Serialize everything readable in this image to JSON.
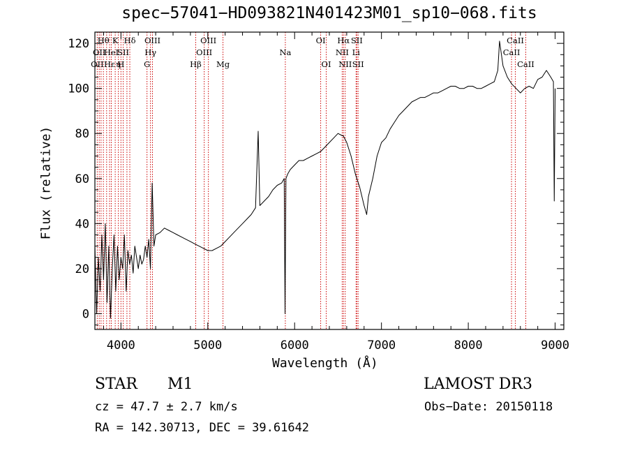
{
  "chart_data": {
    "type": "line",
    "title": "spec−57041−HD093821N401423M01_sp10−068.fits",
    "xlabel": "Wavelength (Å)",
    "ylabel": "Flux (relative)",
    "xlim": [
      3700,
      9100
    ],
    "ylim": [
      -7,
      125
    ],
    "xticks": [
      4000,
      5000,
      6000,
      7000,
      8000,
      9000
    ],
    "xtick_labels": [
      "4000",
      "5000",
      "6000",
      "7000",
      "8000",
      "9000"
    ],
    "yticks": [
      0,
      20,
      40,
      60,
      80,
      100,
      120
    ],
    "ytick_labels": [
      "0",
      "20",
      "40",
      "60",
      "80",
      "100",
      "120"
    ],
    "grid": false,
    "line_color": "#000000",
    "marker_color": "#cc0000",
    "series": [
      {
        "x": [
          3700,
          3720,
          3740,
          3760,
          3780,
          3800,
          3820,
          3840,
          3860,
          3880,
          3900,
          3920,
          3940,
          3960,
          3980,
          4000,
          4020,
          4040,
          4060,
          4080,
          4100,
          4120,
          4140,
          4160,
          4180,
          4200,
          4220,
          4240,
          4260,
          4280,
          4300,
          4320,
          4340,
          4360,
          4380,
          4400,
          4450,
          4500,
          4550,
          4600,
          4650,
          4700,
          4750,
          4800,
          4850,
          4900,
          4950,
          5000,
          5050,
          5100,
          5150,
          5200,
          5250,
          5300,
          5350,
          5400,
          5450,
          5500,
          5550,
          5580,
          5600,
          5650,
          5700,
          5750,
          5800,
          5850,
          5880,
          5890,
          5900,
          5920,
          5950,
          6000,
          6050,
          6100,
          6150,
          6200,
          6250,
          6300,
          6350,
          6400,
          6450,
          6500,
          6550,
          6560,
          6600,
          6650,
          6700,
          6750,
          6800,
          6830,
          6850,
          6900,
          6950,
          7000,
          7050,
          7100,
          7150,
          7200,
          7250,
          7300,
          7350,
          7400,
          7450,
          7500,
          7550,
          7600,
          7650,
          7700,
          7750,
          7800,
          7850,
          7900,
          7950,
          8000,
          8050,
          8100,
          8150,
          8200,
          8250,
          8300,
          8340,
          8360,
          8400,
          8450,
          8500,
          8550,
          8600,
          8650,
          8700,
          8750,
          8800,
          8850,
          8900,
          8950,
          8980,
          8990,
          9000
        ],
        "y": [
          30,
          0,
          25,
          10,
          35,
          15,
          40,
          5,
          30,
          -2,
          20,
          35,
          10,
          30,
          15,
          25,
          20,
          35,
          10,
          28,
          22,
          26,
          18,
          30,
          25,
          20,
          26,
          22,
          24,
          30,
          25,
          33,
          20,
          58,
          30,
          35,
          36,
          38,
          37,
          36,
          35,
          34,
          33,
          32,
          31,
          30,
          29,
          28,
          28,
          29,
          30,
          32,
          34,
          36,
          38,
          40,
          42,
          44,
          47,
          81,
          48,
          50,
          52,
          55,
          57,
          58,
          60,
          0,
          60,
          62,
          64,
          66,
          68,
          68,
          69,
          70,
          71,
          72,
          74,
          76,
          78,
          80,
          79,
          79,
          76,
          70,
          62,
          56,
          48,
          44,
          52,
          60,
          70,
          76,
          78,
          82,
          85,
          88,
          90,
          92,
          94,
          95,
          96,
          96,
          97,
          98,
          98,
          99,
          100,
          101,
          101,
          100,
          100,
          101,
          101,
          100,
          100,
          101,
          102,
          103,
          108,
          121,
          110,
          105,
          102,
          100,
          98,
          100,
          101,
          100,
          104,
          105,
          108,
          105,
          103,
          50,
          100
        ]
      }
    ],
    "line_markers": [
      {
        "x": 3727,
        "label": "OII",
        "row": 2
      },
      {
        "x": 3750,
        "label": "OII",
        "row": 1
      },
      {
        "x": 3771,
        "label": "",
        "row": 0
      },
      {
        "x": 3798,
        "label": "Hθ",
        "row": 0
      },
      {
        "x": 3835,
        "label": "",
        "row": 0
      },
      {
        "x": 3869,
        "label": "Hε",
        "row": 2
      },
      {
        "x": 3889,
        "label": "HeI",
        "row": 1
      },
      {
        "x": 3934,
        "label": "K",
        "row": 0
      },
      {
        "x": 3970,
        "label": "η",
        "row": 2
      },
      {
        "x": 4000,
        "label": "H",
        "row": 2
      },
      {
        "x": 4026,
        "label": "SII",
        "row": 1
      },
      {
        "x": 4069,
        "label": "",
        "row": 0
      },
      {
        "x": 4102,
        "label": "Hδ",
        "row": 0
      },
      {
        "x": 4300,
        "label": "G",
        "row": 2
      },
      {
        "x": 4340,
        "label": "Hγ",
        "row": 1
      },
      {
        "x": 4363,
        "label": "OIII",
        "row": 0
      },
      {
        "x": 4861,
        "label": "Hβ",
        "row": 2
      },
      {
        "x": 4959,
        "label": "OIII",
        "row": 1
      },
      {
        "x": 5007,
        "label": "OIII",
        "row": 0
      },
      {
        "x": 5175,
        "label": "Mg",
        "row": 2
      },
      {
        "x": 5893,
        "label": "Na",
        "row": 1
      },
      {
        "x": 6300,
        "label": "OI",
        "row": 0
      },
      {
        "x": 6364,
        "label": "OI",
        "row": 2
      },
      {
        "x": 6548,
        "label": "NII",
        "row": 1
      },
      {
        "x": 6563,
        "label": "Hα",
        "row": 0
      },
      {
        "x": 6583,
        "label": "NII",
        "row": 2
      },
      {
        "x": 6708,
        "label": "Li",
        "row": 1
      },
      {
        "x": 6716,
        "label": "SII",
        "row": 0
      },
      {
        "x": 6731,
        "label": "SII",
        "row": 2
      },
      {
        "x": 8498,
        "label": "CaII",
        "row": 1
      },
      {
        "x": 8542,
        "label": "CaII",
        "row": 0
      },
      {
        "x": 8662,
        "label": "CaII",
        "row": 2
      }
    ]
  },
  "info": {
    "object_class": "STAR",
    "subclass": "M1",
    "survey": "LAMOST DR3",
    "redshift": "cz = 47.7 ± 2.7 km/s",
    "obs_date": "Obs−Date: 20150118",
    "coords": "RA = 142.30713, DEC =  39.61642"
  }
}
